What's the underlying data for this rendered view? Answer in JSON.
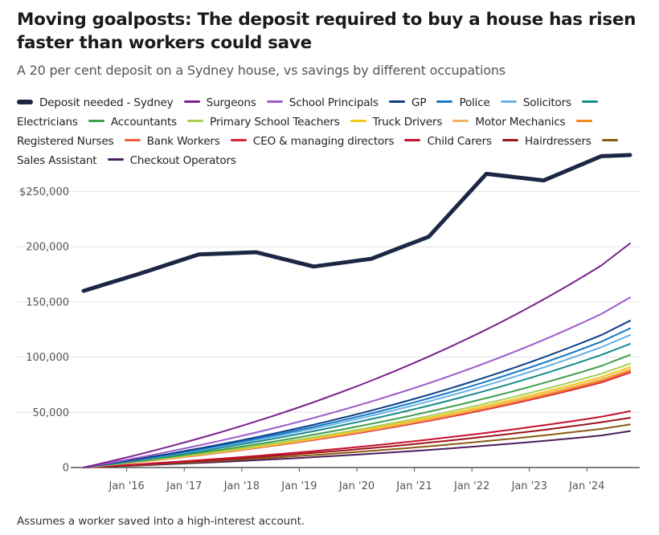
{
  "title": "Moving goalposts: The deposit required to buy a house has risen faster than workers could save",
  "subtitle": "A 20 per cent deposit on a Sydney house, vs savings by different occupations",
  "footnote": "Assumes a worker saved into a high-interest account.",
  "chart_data": {
    "type": "line",
    "title": "Moving goalposts: The deposit required to buy a house has risen faster than workers could save",
    "xlabel": "",
    "ylabel": "",
    "x_range": [
      2015.0,
      2025.0
    ],
    "ylim": [
      0,
      275000
    ],
    "grid": true,
    "x_ticks": [
      {
        "x": 2016.0,
        "label": "Jan '16"
      },
      {
        "x": 2017.0,
        "label": "Jan '17"
      },
      {
        "x": 2018.0,
        "label": "Jan '18"
      },
      {
        "x": 2019.0,
        "label": "Jan '19"
      },
      {
        "x": 2020.0,
        "label": "Jan '20"
      },
      {
        "x": 2021.0,
        "label": "Jan '21"
      },
      {
        "x": 2022.0,
        "label": "Jan '22"
      },
      {
        "x": 2023.0,
        "label": "Jan '23"
      },
      {
        "x": 2024.0,
        "label": "Jan '24"
      }
    ],
    "y_ticks": [
      {
        "y": 0,
        "label": "0"
      },
      {
        "y": 50000,
        "label": "50,000"
      },
      {
        "y": 100000,
        "label": "100,000"
      },
      {
        "y": 150000,
        "label": "150,000"
      },
      {
        "y": 200000,
        "label": "200,000"
      },
      {
        "y": 250000,
        "label": "$250,000"
      }
    ],
    "series": [
      {
        "name": "Deposit needed - Sydney",
        "color": "#1b2744",
        "width": 5,
        "points": [
          [
            2015.25,
            160000
          ],
          [
            2016.25,
            176000
          ],
          [
            2017.25,
            193000
          ],
          [
            2018.25,
            195000
          ],
          [
            2019.25,
            182000
          ],
          [
            2020.25,
            189000
          ],
          [
            2021.25,
            209000
          ],
          [
            2022.25,
            266000
          ],
          [
            2023.25,
            260000
          ],
          [
            2024.25,
            282000
          ],
          [
            2024.75,
            283000
          ]
        ]
      },
      {
        "name": "Surgeons",
        "color": "#7b1f8e",
        "width": 2,
        "points": [
          [
            2015.25,
            0
          ],
          [
            2024.25,
            183000
          ],
          [
            2024.75,
            203000
          ]
        ],
        "curve": 1.15
      },
      {
        "name": "School Principals",
        "color": "#9a5cc9",
        "width": 2,
        "points": [
          [
            2015.25,
            0
          ],
          [
            2024.25,
            139000
          ],
          [
            2024.75,
            154000
          ]
        ],
        "curve": 1.15
      },
      {
        "name": "GP",
        "color": "#0b3f86",
        "width": 2,
        "points": [
          [
            2015.25,
            0
          ],
          [
            2024.25,
            120000
          ],
          [
            2024.75,
            133000
          ]
        ],
        "curve": 1.15
      },
      {
        "name": "Police",
        "color": "#1679c6",
        "width": 2,
        "points": [
          [
            2015.25,
            0
          ],
          [
            2024.25,
            114000
          ],
          [
            2024.75,
            126000
          ]
        ],
        "curve": 1.15
      },
      {
        "name": "Solicitors",
        "color": "#6ab2e6",
        "width": 2,
        "points": [
          [
            2015.25,
            0
          ],
          [
            2024.25,
            109000
          ],
          [
            2024.75,
            120000
          ]
        ],
        "curve": 1.15
      },
      {
        "name": "Electricians",
        "color": "#178a8a",
        "width": 2,
        "points": [
          [
            2015.25,
            0
          ],
          [
            2024.25,
            102000
          ],
          [
            2024.75,
            112000
          ]
        ],
        "curve": 1.15
      },
      {
        "name": "Accountants",
        "color": "#3f9e4d",
        "width": 2,
        "points": [
          [
            2015.25,
            0
          ],
          [
            2024.25,
            92000
          ],
          [
            2024.75,
            102000
          ]
        ],
        "curve": 1.15
      },
      {
        "name": "Primary School Teachers",
        "color": "#a8cf55",
        "width": 2,
        "points": [
          [
            2015.25,
            0
          ],
          [
            2024.25,
            85000
          ],
          [
            2024.75,
            94000
          ]
        ],
        "curve": 1.15
      },
      {
        "name": "Truck Drivers",
        "color": "#f4c61d",
        "width": 2,
        "points": [
          [
            2015.25,
            0
          ],
          [
            2024.25,
            82000
          ],
          [
            2024.75,
            91000
          ]
        ],
        "curve": 1.15
      },
      {
        "name": "Motor Mechanics",
        "color": "#f3b26b",
        "width": 2,
        "points": [
          [
            2015.25,
            0
          ],
          [
            2024.25,
            80000
          ],
          [
            2024.75,
            89000
          ]
        ],
        "curve": 1.15
      },
      {
        "name": "Registered Nurses",
        "color": "#ef8b1c",
        "width": 2,
        "points": [
          [
            2015.25,
            0
          ],
          [
            2024.25,
            79000
          ],
          [
            2024.75,
            88000
          ]
        ],
        "curve": 1.15
      },
      {
        "name": "Bank Workers",
        "color": "#ea5d3d",
        "width": 2,
        "points": [
          [
            2015.25,
            0
          ],
          [
            2024.25,
            78000
          ],
          [
            2024.75,
            87000
          ]
        ],
        "curve": 1.15
      },
      {
        "name": "CEO & managing directors",
        "color": "#d8203a",
        "width": 2,
        "points": [
          [
            2015.25,
            0
          ],
          [
            2024.25,
            77000
          ],
          [
            2024.75,
            86000
          ]
        ],
        "curve": 1.15
      },
      {
        "name": "Child Carers",
        "color": "#c7102e",
        "width": 2,
        "points": [
          [
            2015.25,
            0
          ],
          [
            2024.25,
            46000
          ],
          [
            2024.75,
            51000
          ]
        ],
        "curve": 1.15
      },
      {
        "name": "Hairdressers",
        "color": "#9c1419",
        "width": 2,
        "points": [
          [
            2015.25,
            0
          ],
          [
            2024.25,
            41000
          ],
          [
            2024.75,
            45000
          ]
        ],
        "curve": 1.15
      },
      {
        "name": "Sales Assistant",
        "color": "#8a5a12",
        "width": 2,
        "points": [
          [
            2015.25,
            0
          ],
          [
            2024.25,
            35000
          ],
          [
            2024.75,
            39000
          ]
        ],
        "curve": 1.15
      },
      {
        "name": "Checkout Operators",
        "color": "#4b1d5c",
        "width": 2,
        "points": [
          [
            2015.25,
            0
          ],
          [
            2024.25,
            29000
          ],
          [
            2024.75,
            33000
          ]
        ],
        "curve": 1.15
      }
    ]
  }
}
